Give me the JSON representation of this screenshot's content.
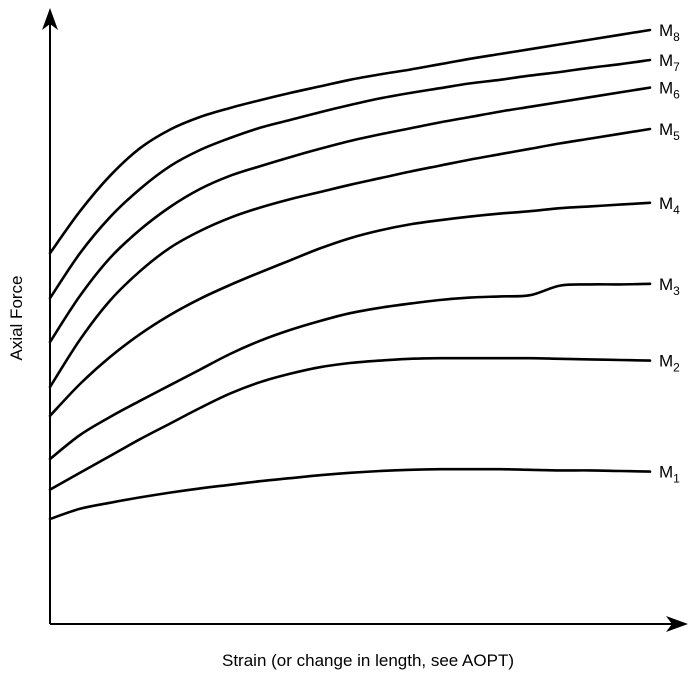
{
  "chart_data": {
    "type": "line",
    "title": "",
    "xlabel": "Strain (or change in length, see AOPT)",
    "ylabel": "Axial Force",
    "grid": false,
    "legend": "series labels at right end of each line",
    "xlim": [
      0,
      100
    ],
    "ylim": [
      0,
      100
    ],
    "x": [
      0,
      5,
      10,
      15,
      20,
      25,
      30,
      35,
      40,
      45,
      50,
      55,
      60,
      65,
      70,
      75,
      80,
      85,
      90,
      95,
      100
    ],
    "series": [
      {
        "name": "M8",
        "label_main": "M",
        "label_sub": "8",
        "values": [
          61.8,
          68.8,
          74.7,
          79.3,
          82.4,
          84.5,
          86.0,
          87.3,
          88.5,
          89.6,
          90.7,
          91.6,
          92.4,
          93.3,
          94.2,
          95.0,
          95.8,
          96.6,
          97.4,
          98.2,
          99.0
        ]
      },
      {
        "name": "M7",
        "label_main": "M",
        "label_sub": "7",
        "values": [
          54.3,
          61.8,
          67.8,
          72.5,
          76.3,
          79.0,
          81.0,
          82.7,
          84.0,
          85.3,
          86.5,
          87.6,
          88.5,
          89.3,
          90.1,
          90.7,
          91.4,
          92.0,
          92.7,
          93.3,
          94.0
        ]
      },
      {
        "name": "M6",
        "label_main": "M",
        "label_sub": "6",
        "values": [
          47.0,
          54.7,
          61.0,
          65.7,
          69.5,
          72.5,
          74.7,
          76.3,
          77.8,
          79.2,
          80.5,
          81.6,
          82.6,
          83.6,
          84.5,
          85.4,
          86.2,
          87.0,
          87.8,
          88.6,
          89.4
        ]
      },
      {
        "name": "M5",
        "label_main": "M",
        "label_sub": "5",
        "values": [
          39.5,
          47.4,
          53.9,
          58.8,
          62.7,
          65.5,
          67.7,
          69.4,
          70.8,
          72.0,
          73.2,
          74.3,
          75.4,
          76.4,
          77.4,
          78.3,
          79.2,
          80.1,
          80.9,
          81.7,
          82.5
        ]
      },
      {
        "name": "M4",
        "label_main": "M",
        "label_sub": "4",
        "values": [
          34.7,
          40.0,
          44.5,
          48.3,
          51.5,
          54.2,
          56.5,
          58.6,
          60.6,
          62.6,
          64.3,
          65.6,
          66.6,
          67.3,
          67.9,
          68.4,
          68.8,
          69.3,
          69.6,
          69.9,
          70.2
        ]
      },
      {
        "name": "M3",
        "label_main": "M",
        "label_sub": "3",
        "values": [
          27.5,
          31.5,
          34.5,
          37.2,
          39.8,
          42.4,
          45.0,
          47.2,
          49.0,
          50.5,
          51.8,
          52.7,
          53.4,
          54.0,
          54.4,
          54.6,
          54.8,
          56.4,
          56.6,
          56.6,
          56.7
        ]
      },
      {
        "name": "M2",
        "label_main": "M",
        "label_sub": "2",
        "values": [
          22.4,
          25.2,
          28.0,
          30.8,
          33.4,
          36.0,
          38.4,
          40.3,
          41.7,
          42.8,
          43.5,
          43.9,
          44.2,
          44.3,
          44.3,
          44.3,
          44.3,
          44.2,
          44.1,
          44.0,
          43.9
        ]
      },
      {
        "name": "M1",
        "label_main": "M",
        "label_sub": "1",
        "values": [
          17.5,
          19.2,
          20.2,
          21.1,
          21.9,
          22.6,
          23.2,
          23.8,
          24.3,
          24.8,
          25.2,
          25.5,
          25.7,
          25.8,
          25.8,
          25.8,
          25.7,
          25.6,
          25.6,
          25.5,
          25.4
        ]
      }
    ]
  }
}
